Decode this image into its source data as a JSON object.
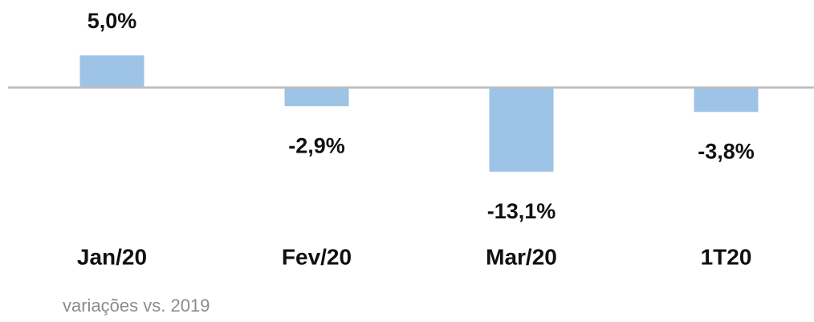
{
  "chart_data": {
    "type": "bar",
    "categories": [
      "Jan/20",
      "Fev/20",
      "Mar/20",
      "1T20"
    ],
    "values": [
      5.0,
      -2.9,
      -13.1,
      -3.8
    ],
    "value_labels": [
      "5,0%",
      "-2,9%",
      "-13,1%",
      "-3,8%"
    ],
    "color": "#9dc3e6",
    "ylim": [
      -20,
      10
    ],
    "note": "variações vs. 2019"
  }
}
